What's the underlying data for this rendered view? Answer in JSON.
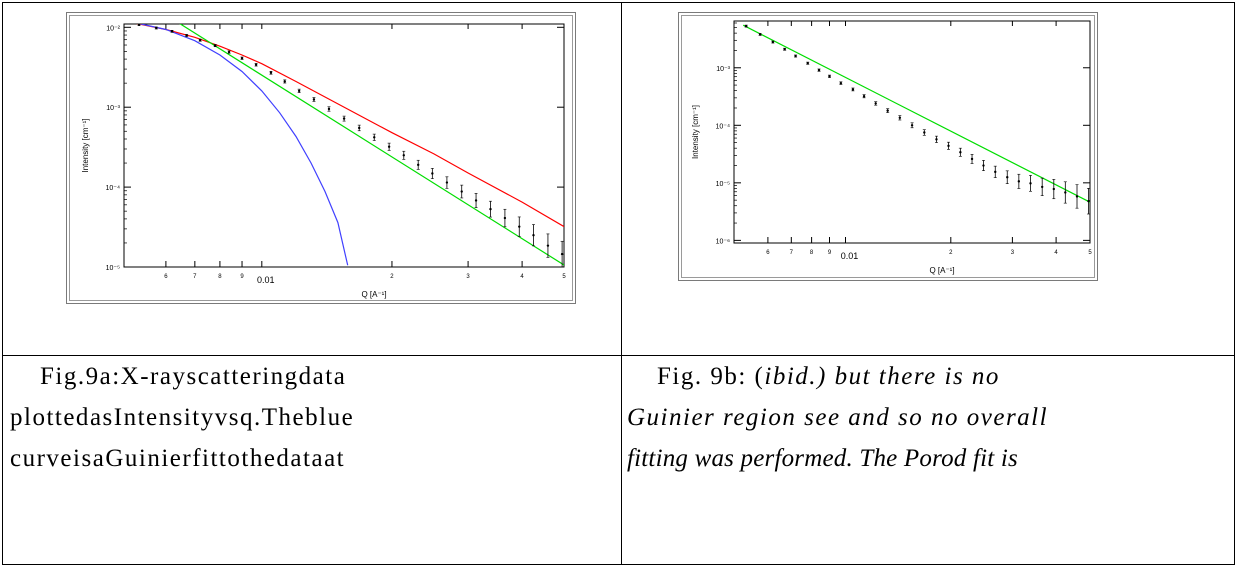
{
  "chart_data": [
    {
      "type": "line",
      "xscale": "log",
      "yscale": "log",
      "xlim": [
        0.0048,
        0.05
      ],
      "ylim": [
        1e-05,
        0.011
      ],
      "xlabel": "Q [A⁻¹]",
      "ylabel": "Intensity [cm⁻¹]",
      "x_ticks": [
        {
          "value": 0.006,
          "label": "6"
        },
        {
          "value": 0.007,
          "label": "7"
        },
        {
          "value": 0.008,
          "label": "8"
        },
        {
          "value": 0.009,
          "label": "9"
        },
        {
          "value": 0.01,
          "label": "0.01"
        },
        {
          "value": 0.02,
          "label": "2"
        },
        {
          "value": 0.03,
          "label": "3"
        },
        {
          "value": 0.04,
          "label": "4"
        },
        {
          "value": 0.05,
          "label": "5"
        }
      ],
      "y_ticks": [
        {
          "value": 0.01,
          "label": "10⁻²"
        },
        {
          "value": 0.001,
          "label": "10⁻³"
        },
        {
          "value": 0.0001,
          "label": "10⁻⁴"
        },
        {
          "value": 1e-05,
          "label": "10⁻⁵"
        }
      ],
      "series": [
        {
          "color": "#ff0000",
          "kind": "line",
          "x": [
            0.005,
            0.006,
            0.007,
            0.008,
            0.009,
            0.01,
            0.012,
            0.015,
            0.02,
            0.025,
            0.03,
            0.04,
            0.05
          ],
          "y": [
            0.0115,
            0.0094,
            0.0075,
            0.0058,
            0.0045,
            0.0035,
            0.0021,
            0.0011,
            0.00048,
            0.00026,
            0.00015,
            6.5e-05,
            3.2e-05
          ]
        },
        {
          "color": "#00dd00",
          "kind": "line",
          "x": [
            0.0064,
            0.05
          ],
          "y": [
            0.0115,
            1.06e-05
          ]
        },
        {
          "color": "#4040ff",
          "kind": "line",
          "x": [
            0.005,
            0.006,
            0.007,
            0.008,
            0.009,
            0.01,
            0.011,
            0.012,
            0.013,
            0.014,
            0.015,
            0.0158
          ],
          "y": [
            0.0117,
            0.0094,
            0.0068,
            0.0045,
            0.0028,
            0.0016,
            0.00085,
            0.00043,
            0.0002,
            8.8e-05,
            3.6e-05,
            1.05e-05
          ]
        },
        {
          "color": "#000000",
          "kind": "points",
          "x": [
            0.0052,
            0.0057,
            0.0062,
            0.0067,
            0.0072,
            0.0078,
            0.0084,
            0.009,
            0.0097,
            0.0105,
            0.0113,
            0.0122,
            0.0132,
            0.0143,
            0.0155,
            0.0168,
            0.0182,
            0.0197,
            0.0213,
            0.023,
            0.0248,
            0.0268,
            0.029,
            0.0313,
            0.0338,
            0.0365,
            0.0394,
            0.0425,
            0.0459,
            0.0495
          ],
          "y": [
            0.0108,
            0.0098,
            0.0089,
            0.0079,
            0.0069,
            0.0059,
            0.0049,
            0.0041,
            0.0034,
            0.0027,
            0.0021,
            0.0016,
            0.00125,
            0.00095,
            0.00072,
            0.00055,
            0.00042,
            0.00032,
            0.00025,
            0.00019,
            0.000148,
            0.000114,
            8.8e-05,
            6.8e-05,
            5.3e-05,
            4.1e-05,
            3.2e-05,
            2.5e-05,
            1.85e-05,
            1.45e-05
          ]
        }
      ]
    },
    {
      "type": "line",
      "xscale": "log",
      "yscale": "log",
      "xlim": [
        0.0048,
        0.05
      ],
      "ylim": [
        9e-07,
        0.0065
      ],
      "xlabel": "Q [A⁻¹]",
      "ylabel": "Intensity [cm⁻¹]",
      "x_ticks": [
        {
          "value": 0.006,
          "label": "6"
        },
        {
          "value": 0.007,
          "label": "7"
        },
        {
          "value": 0.008,
          "label": "8"
        },
        {
          "value": 0.009,
          "label": "9"
        },
        {
          "value": 0.01,
          "label": "0.01"
        },
        {
          "value": 0.02,
          "label": "2"
        },
        {
          "value": 0.03,
          "label": "3"
        },
        {
          "value": 0.04,
          "label": "4"
        },
        {
          "value": 0.05,
          "label": "5"
        }
      ],
      "y_ticks": [
        {
          "value": 0.001,
          "label": "10⁻³"
        },
        {
          "value": 0.0001,
          "label": "10⁻⁴"
        },
        {
          "value": 1e-05,
          "label": "10⁻⁵"
        },
        {
          "value": 1e-06,
          "label": "10⁻⁶"
        }
      ],
      "series": [
        {
          "color": "#00dd00",
          "kind": "line",
          "x": [
            0.0051,
            0.05
          ],
          "y": [
            0.0055,
            4.6e-06
          ]
        },
        {
          "color": "#000000",
          "kind": "points",
          "x": [
            0.0052,
            0.0057,
            0.0062,
            0.0067,
            0.0072,
            0.0078,
            0.0084,
            0.009,
            0.0097,
            0.0105,
            0.0113,
            0.0122,
            0.0132,
            0.0143,
            0.0155,
            0.0168,
            0.0182,
            0.0197,
            0.0213,
            0.023,
            0.0248,
            0.0268,
            0.029,
            0.0313,
            0.0338,
            0.0365,
            0.0394,
            0.0425,
            0.0459,
            0.0495
          ],
          "y": [
            0.0053,
            0.0038,
            0.0028,
            0.0021,
            0.0016,
            0.0012,
            0.00091,
            0.00071,
            0.00054,
            0.00042,
            0.00032,
            0.00024,
            0.00018,
            0.000135,
            0.0001,
            7.5e-05,
            5.7e-05,
            4.4e-05,
            3.4e-05,
            2.6e-05,
            2e-05,
            1.55e-05,
            1.25e-05,
            1.06e-05,
            9.8e-06,
            8.5e-06,
            7.8e-06,
            6.8e-06,
            5.8e-06,
            4.8e-06
          ]
        }
      ]
    }
  ],
  "captions": {
    "a": {
      "line1": [
        "Fig.",
        "9a:",
        "X-ray",
        "scattering",
        "data"
      ],
      "line2": [
        "plotted",
        "as",
        "Intensity",
        "vs",
        "q.",
        "The",
        "blue"
      ],
      "line3": [
        "curve",
        "is",
        "a",
        "Guinier",
        "fit",
        "to",
        "the",
        "data",
        "at"
      ]
    },
    "b": {
      "line1_prefix": "Fig. 9b: (",
      "line1_ibid": "ibid.",
      "line1_rest": ") but there is no",
      "line2": "Guinier region see and so no overall",
      "line3": "fitting was performed. The Porod fit is"
    }
  }
}
